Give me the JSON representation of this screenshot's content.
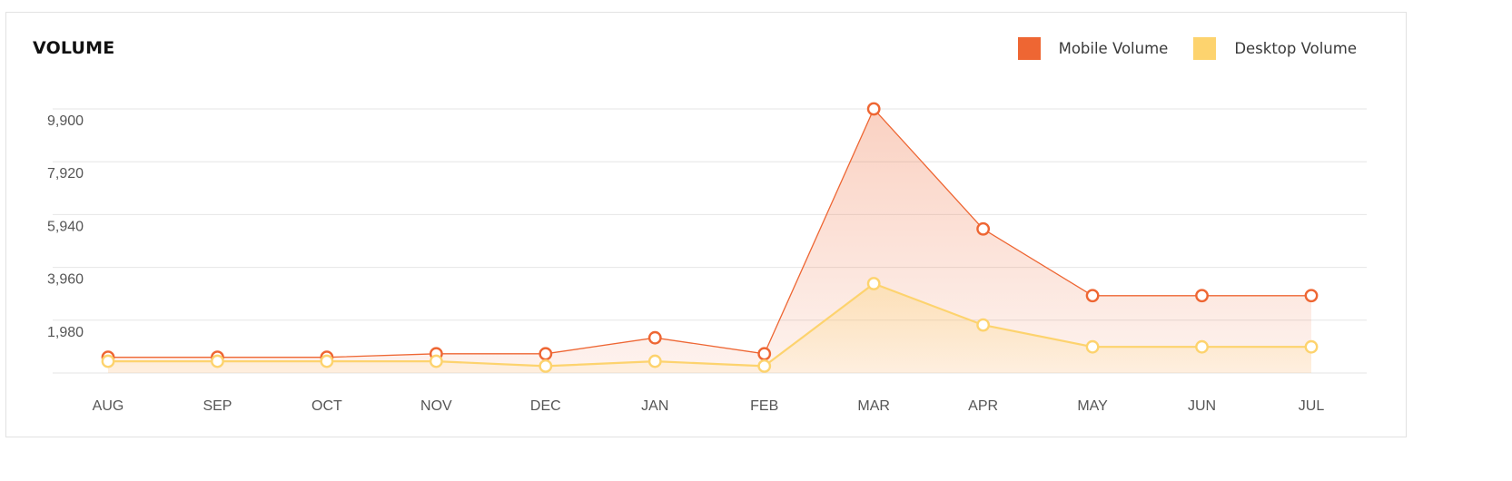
{
  "title": "VOLUME",
  "legend": {
    "mobile": "Mobile Volume",
    "desktop": "Desktop Volume"
  },
  "colors": {
    "mobile": "#ee6633",
    "desktop": "#fdd36e",
    "grid": "#e6e6e6",
    "tick": "#555555"
  },
  "chart_data": {
    "type": "area",
    "categories": [
      "AUG",
      "SEP",
      "OCT",
      "NOV",
      "DEC",
      "JAN",
      "FEB",
      "MAR",
      "APR",
      "MAY",
      "JUN",
      "JUL"
    ],
    "y_ticks": [
      "9,900",
      "7,920",
      "5,940",
      "3,960",
      "1,980"
    ],
    "ylim": [
      0,
      9900
    ],
    "grid": true,
    "legend_position": "top-right",
    "series": [
      {
        "name": "Mobile Volume",
        "values": [
          590,
          590,
          590,
          720,
          720,
          1320,
          720,
          9900,
          5400,
          2900,
          2900,
          2900
        ]
      },
      {
        "name": "Desktop Volume",
        "values": [
          440,
          440,
          440,
          440,
          260,
          440,
          260,
          3350,
          1800,
          980,
          980,
          980
        ]
      }
    ]
  }
}
